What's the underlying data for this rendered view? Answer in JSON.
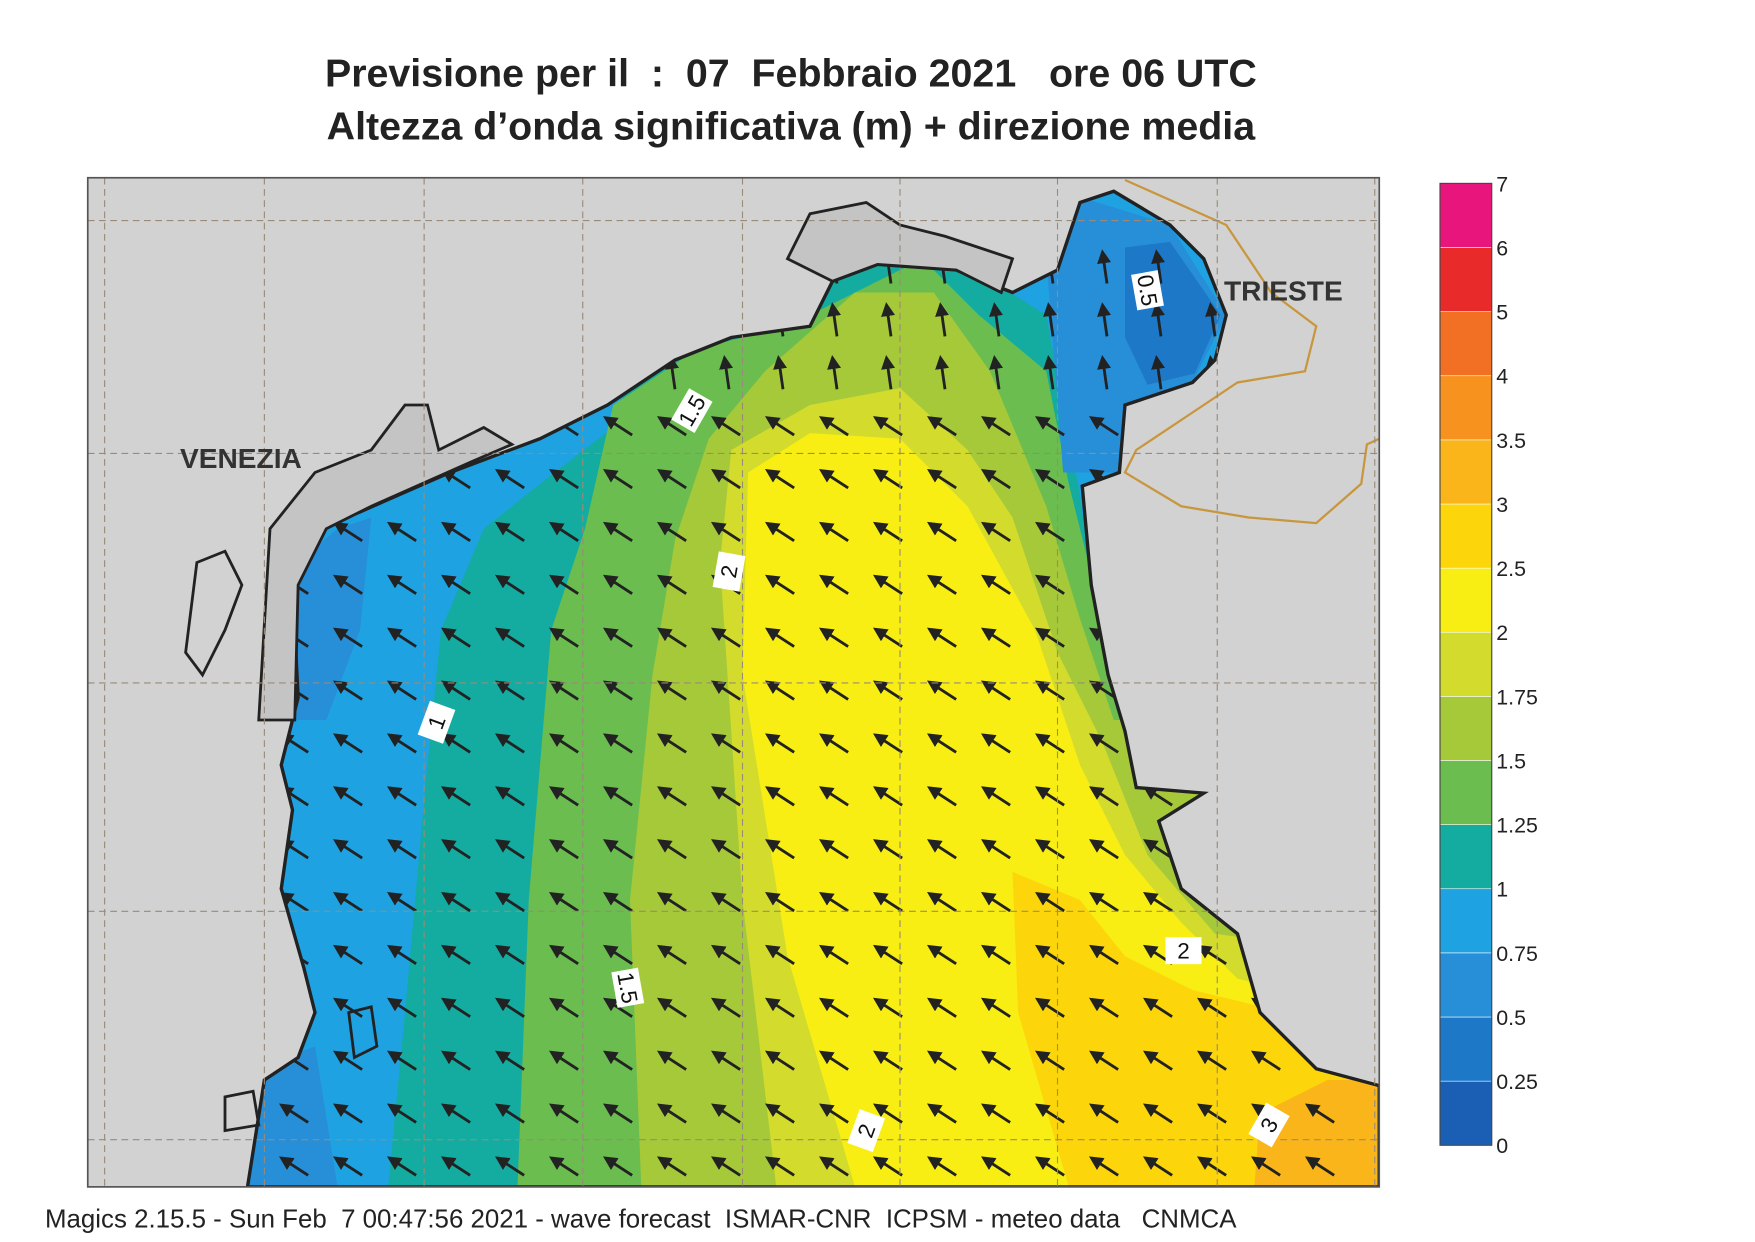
{
  "header": {
    "title": "Previsione per il  :  07  Febbraio 2021   ore 06 UTC",
    "subtitle": "Altezza d’onda significativa (m) + direzione media"
  },
  "places": [
    "VENEZIA",
    "TRIESTE"
  ],
  "contour_labels": [
    "0.5",
    "1.5",
    "2",
    "1",
    "1.5",
    "2",
    "2",
    "3"
  ],
  "legend": {
    "ticks": [
      "0",
      "0.25",
      "0.5",
      "0.75",
      "1",
      "1.25",
      "1.5",
      "1.75",
      "2",
      "2.5",
      "3",
      "3.5",
      "4",
      "5",
      "6",
      "7"
    ],
    "colors": [
      "#1a5fb4",
      "#1d78c8",
      "#278ed8",
      "#1ea2e2",
      "#14aca0",
      "#6abd4e",
      "#a6c93a",
      "#d3dc2c",
      "#f8ee14",
      "#fcd60a",
      "#f9b51a",
      "#f7921f",
      "#f27024",
      "#e82a2a",
      "#e8167c"
    ]
  },
  "footer": "Magics 2.15.5 - Sun Feb  7 00:47:56 2021 - wave forecast  ISMAR-CNR  ICPSM - meteo data   CNMCA"
}
